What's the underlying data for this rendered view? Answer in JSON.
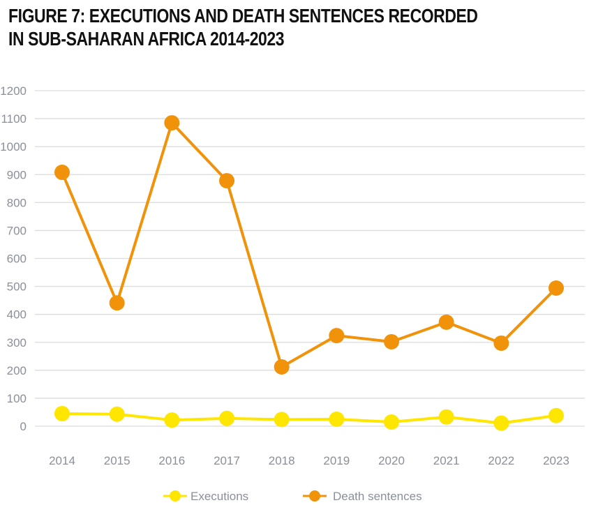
{
  "chart_data": {
    "type": "line",
    "title": "FIGURE 7: EXECUTIONS AND DEATH SENTENCES RECORDED IN SUB-SAHARAN AFRICA 2014-2023",
    "title_lines": [
      "FIGURE 7: EXECUTIONS AND DEATH SENTENCES RECORDED",
      "IN SUB-SAHARAN AFRICA 2014-2023"
    ],
    "xlabel": "",
    "ylabel": "",
    "x": [
      "2014",
      "2015",
      "2016",
      "2017",
      "2018",
      "2019",
      "2020",
      "2021",
      "2022",
      "2023"
    ],
    "ylim": [
      0,
      1200
    ],
    "yticks": [
      0,
      100,
      200,
      300,
      400,
      500,
      600,
      700,
      800,
      900,
      1000,
      1100,
      1200
    ],
    "grid": true,
    "legend_position": "bottom-center",
    "series": [
      {
        "name": "Executions",
        "color": "#ffe600",
        "values": [
          45,
          43,
          22,
          28,
          24,
          25,
          15,
          33,
          11,
          38
        ]
      },
      {
        "name": "Death sentences",
        "color": "#f0920a",
        "values": [
          908,
          441,
          1085,
          878,
          212,
          324,
          302,
          372,
          297,
          494
        ]
      }
    ]
  }
}
